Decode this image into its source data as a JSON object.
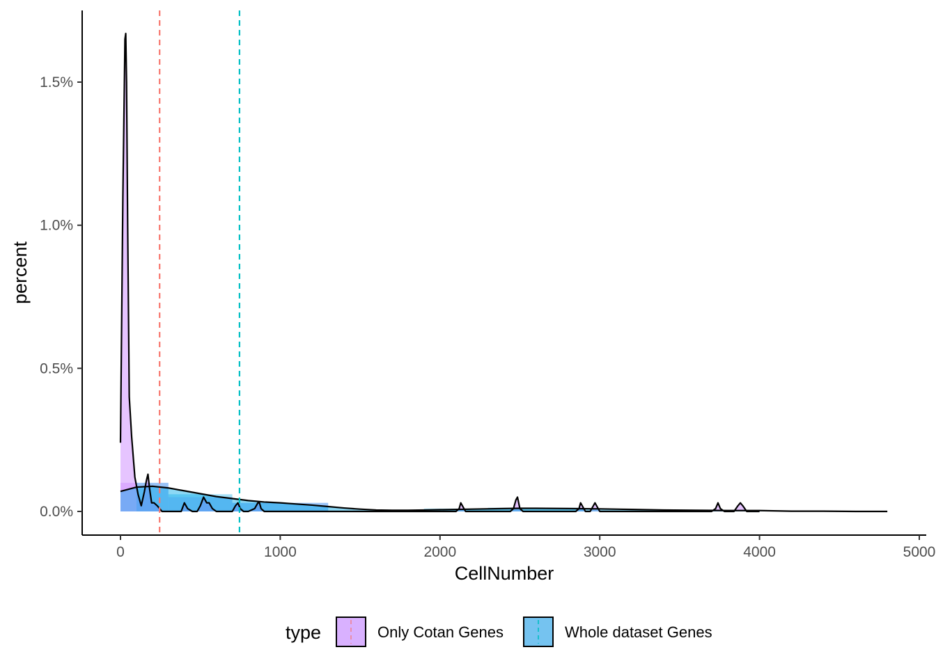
{
  "chart_data": {
    "type": "area",
    "xlabel": "CellNumber",
    "ylabel": "percent",
    "xlim": [
      -240,
      5000
    ],
    "ylim": [
      -0.0008,
      0.0172
    ],
    "x_ticks": [
      0,
      1000,
      2000,
      3000,
      4000,
      5000
    ],
    "x_tick_labels": [
      "0",
      "1000",
      "2000",
      "3000",
      "4000",
      "5000"
    ],
    "y_ticks": [
      0,
      0.005,
      0.01,
      0.015
    ],
    "y_tick_labels": [
      "0.0%",
      "0.5%",
      "1.0%",
      "1.5%"
    ],
    "legend": {
      "title": "type",
      "position": "bottom",
      "entries": [
        {
          "label": "Only Cotan Genes",
          "fill": "#C77CFF",
          "line": "#F8766D"
        },
        {
          "label": "Whole dataset Genes",
          "fill": "#00A9E8",
          "line": "#00BFC4"
        }
      ]
    },
    "vlines": [
      {
        "series": "Only Cotan Genes",
        "x": 245,
        "color": "#F8766D",
        "style": "dashed"
      },
      {
        "series": "Whole dataset Genes",
        "x": 745,
        "color": "#00BFC4",
        "style": "dashed"
      }
    ],
    "series": [
      {
        "name": "Only Cotan Genes",
        "fill_color": "#C77CFF",
        "histogram": [
          {
            "x0": 0,
            "x1": 300,
            "height": 0.001
          },
          {
            "x0": 300,
            "x1": 700,
            "height": 0.0005
          },
          {
            "x0": 700,
            "x1": 1300,
            "height": 0.0003
          }
        ],
        "density_x": [
          0,
          15,
          28,
          33,
          38,
          45,
          55,
          70,
          90,
          110,
          130,
          150,
          163,
          172,
          182,
          195,
          210,
          230,
          260,
          300,
          340,
          380,
          400,
          420,
          450,
          480,
          500,
          520,
          540,
          555,
          575,
          600,
          650,
          700,
          720,
          735,
          750,
          770,
          800,
          840,
          860,
          870,
          880,
          900,
          950,
          1000,
          1500,
          2000,
          2100,
          2120,
          2130,
          2140,
          2160,
          2200,
          2400,
          2440,
          2460,
          2475,
          2485,
          2500,
          2520,
          2560,
          2800,
          2850,
          2870,
          2880,
          2890,
          2910,
          2940,
          2960,
          2970,
          2980,
          3000,
          3040,
          3200,
          3600,
          3700,
          3725,
          3740,
          3755,
          3780,
          3840,
          3865,
          3880,
          3895,
          3920,
          4000
        ],
        "density_y": [
          0.0024,
          0.011,
          0.0165,
          0.0167,
          0.015,
          0.01,
          0.004,
          0.0026,
          0.0012,
          0.0006,
          0.0002,
          0.0007,
          0.0011,
          0.0013,
          0.0008,
          0.0003,
          0.0003,
          0.0002,
          0.0,
          0.0,
          0.0,
          0.0,
          0.0003,
          0.0001,
          0.0,
          0.0,
          0.0002,
          0.0005,
          0.0003,
          0.0003,
          0.0001,
          0.0,
          0.0,
          0.0,
          0.0002,
          0.0003,
          0.0001,
          0.0,
          0.0,
          0.0001,
          0.0003,
          0.0003,
          0.0001,
          0.0,
          0.0,
          0.0,
          0.0,
          0.0,
          0.0,
          0.0001,
          0.0003,
          0.0002,
          0.0,
          0.0,
          0.0,
          0.0,
          0.0001,
          0.0004,
          0.0005,
          0.0001,
          0.0,
          0.0,
          0.0,
          0.0,
          0.0001,
          0.0003,
          0.0002,
          0.0,
          0.0,
          0.0002,
          0.0003,
          0.0002,
          0.0,
          0.0,
          0.0,
          0.0,
          0.0,
          0.0001,
          0.0003,
          0.0001,
          0.0,
          0.0,
          0.0002,
          0.0003,
          0.0002,
          0.0,
          0.0
        ]
      },
      {
        "name": "Whole dataset Genes",
        "fill_color": "#00A9E8",
        "histogram": [
          {
            "x0": 100,
            "x1": 300,
            "height": 0.001
          },
          {
            "x0": 300,
            "x1": 700,
            "height": 0.0006
          },
          {
            "x0": 700,
            "x1": 1300,
            "height": 0.0003
          },
          {
            "x0": 1900,
            "x1": 2300,
            "height": 0.0001
          },
          {
            "x0": 2300,
            "x1": 2900,
            "height": 0.00013
          },
          {
            "x0": 3600,
            "x1": 4000,
            "height": 5e-05
          }
        ],
        "density_x": [
          0,
          100,
          200,
          300,
          400,
          500,
          600,
          700,
          800,
          900,
          1000,
          1100,
          1200,
          1300,
          1400,
          1500,
          1600,
          1700,
          1800,
          1900,
          2000,
          2200,
          2400,
          2500,
          2600,
          2800,
          3000,
          3200,
          3400,
          3600,
          3800,
          4000,
          4200,
          4400,
          4600,
          4800
        ],
        "density_y": [
          0.0007,
          0.00085,
          0.00088,
          0.00082,
          0.00072,
          0.00062,
          0.00052,
          0.00045,
          0.00038,
          0.00033,
          0.0003,
          0.00026,
          0.00022,
          0.00017,
          0.00012,
          8e-05,
          5e-05,
          4e-05,
          4e-05,
          5e-05,
          6e-05,
          8e-05,
          0.0001,
          0.00011,
          0.00011,
          0.0001,
          9e-05,
          7e-05,
          5e-05,
          4e-05,
          3e-05,
          3e-05,
          1e-05,
          1e-05,
          0.0,
          0.0
        ]
      }
    ]
  }
}
